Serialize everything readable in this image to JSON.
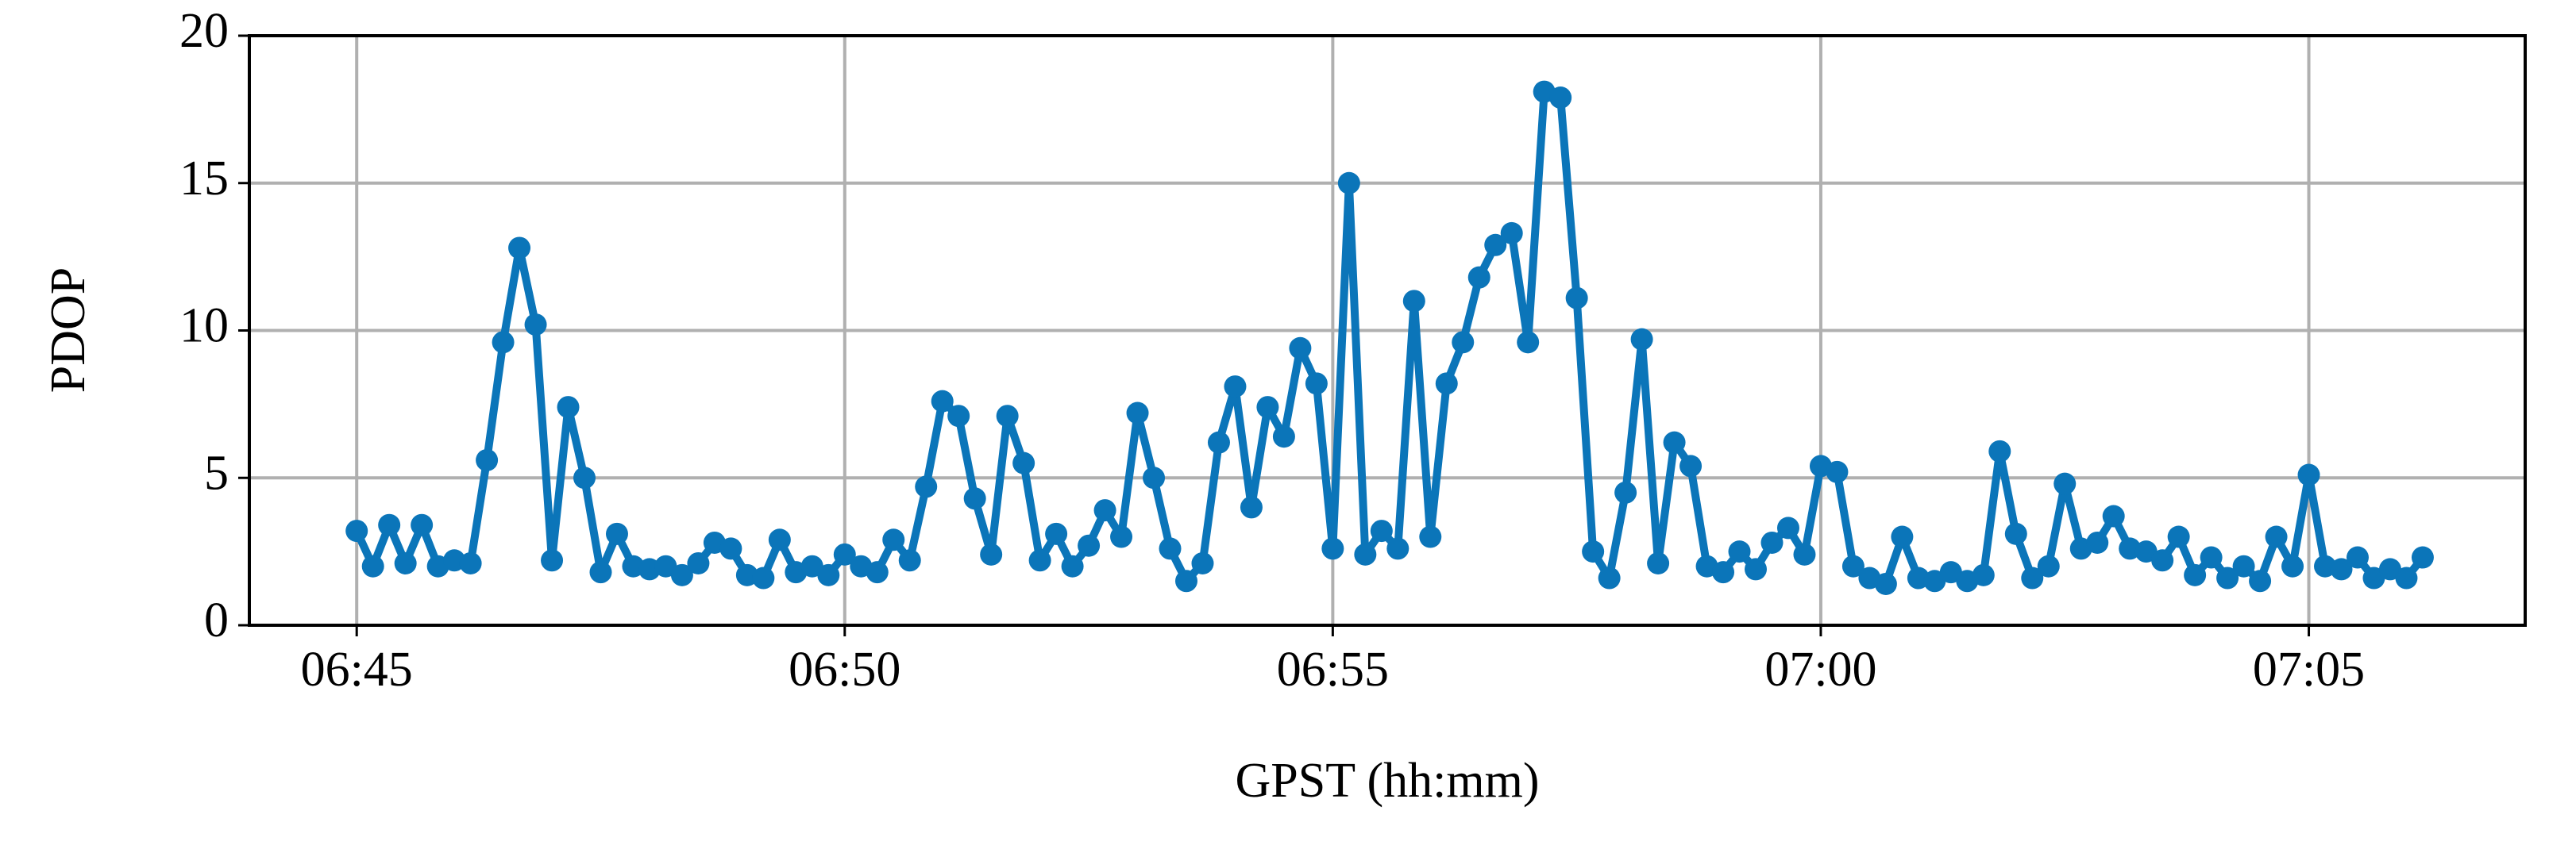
{
  "chart_data": {
    "type": "line",
    "xlabel": "GPST (hh:mm)",
    "ylabel": "PDOP",
    "grid": true,
    "x": [
      "06:45:00",
      "06:45:10",
      "06:45:20",
      "06:45:30",
      "06:45:40",
      "06:45:50",
      "06:46:00",
      "06:46:10",
      "06:46:20",
      "06:46:30",
      "06:46:40",
      "06:46:50",
      "06:47:00",
      "06:47:10",
      "06:47:20",
      "06:47:30",
      "06:47:40",
      "06:47:50",
      "06:48:00",
      "06:48:10",
      "06:48:20",
      "06:48:30",
      "06:48:40",
      "06:48:50",
      "06:49:00",
      "06:49:10",
      "06:49:20",
      "06:49:30",
      "06:49:40",
      "06:49:50",
      "06:50:00",
      "06:50:10",
      "06:50:20",
      "06:50:30",
      "06:50:40",
      "06:50:50",
      "06:51:00",
      "06:51:10",
      "06:51:20",
      "06:51:30",
      "06:51:40",
      "06:51:50",
      "06:52:00",
      "06:52:10",
      "06:52:20",
      "06:52:30",
      "06:52:40",
      "06:52:50",
      "06:53:00",
      "06:53:10",
      "06:53:20",
      "06:53:30",
      "06:53:40",
      "06:53:50",
      "06:54:00",
      "06:54:10",
      "06:54:20",
      "06:54:30",
      "06:54:40",
      "06:54:50",
      "06:55:00",
      "06:55:10",
      "06:55:20",
      "06:55:30",
      "06:55:40",
      "06:55:50",
      "06:56:00",
      "06:56:10",
      "06:56:20",
      "06:56:30",
      "06:56:40",
      "06:56:50",
      "06:57:00",
      "06:57:10",
      "06:57:20",
      "06:57:30",
      "06:57:40",
      "06:57:50",
      "06:58:00",
      "06:58:10",
      "06:58:20",
      "06:58:30",
      "06:58:40",
      "06:58:50",
      "06:59:00",
      "06:59:10",
      "06:59:20",
      "06:59:30",
      "06:59:40",
      "06:59:50",
      "07:00:00",
      "07:00:10",
      "07:00:20",
      "07:00:30",
      "07:00:40",
      "07:00:50",
      "07:01:00",
      "07:01:10",
      "07:01:20",
      "07:01:30",
      "07:01:40",
      "07:01:50",
      "07:02:00",
      "07:02:10",
      "07:02:20",
      "07:02:30",
      "07:02:40",
      "07:02:50",
      "07:03:00",
      "07:03:10",
      "07:03:20",
      "07:03:30",
      "07:03:40",
      "07:03:50",
      "07:04:00",
      "07:04:10",
      "07:04:20",
      "07:04:30",
      "07:04:40",
      "07:04:50",
      "07:05:00",
      "07:05:10",
      "07:05:20",
      "07:05:30",
      "07:05:40",
      "07:05:50",
      "07:06:00",
      "07:06:10"
    ],
    "series": [
      {
        "color": "#0b75b9",
        "values": [
          3.2,
          2.0,
          3.4,
          2.1,
          3.4,
          2.0,
          2.2,
          2.1,
          5.6,
          9.6,
          12.8,
          10.2,
          2.2,
          7.4,
          5.0,
          1.8,
          3.1,
          2.0,
          1.9,
          2.0,
          1.7,
          2.1,
          2.8,
          2.6,
          1.7,
          1.6,
          2.9,
          1.8,
          2.0,
          1.7,
          2.4,
          2.0,
          1.8,
          2.9,
          2.2,
          4.7,
          7.6,
          7.1,
          4.3,
          2.4,
          7.1,
          5.5,
          2.2,
          3.1,
          2.0,
          2.7,
          3.9,
          3.0,
          7.2,
          5.0,
          2.6,
          1.5,
          2.1,
          6.2,
          8.1,
          4.0,
          7.4,
          6.4,
          9.4,
          8.2,
          2.6,
          15.0,
          2.4,
          3.2,
          2.6,
          11.0,
          3.0,
          8.2,
          9.6,
          11.8,
          12.9,
          13.3,
          9.6,
          18.1,
          17.9,
          11.1,
          2.5,
          1.6,
          4.5,
          9.7,
          2.1,
          6.2,
          5.4,
          2.0,
          1.8,
          2.5,
          1.9,
          2.8,
          3.3,
          2.4,
          5.4,
          5.2,
          2.0,
          1.6,
          1.4,
          3.0,
          1.6,
          1.5,
          1.8,
          1.5,
          1.7,
          5.9,
          3.1,
          1.6,
          2.0,
          4.8,
          2.6,
          2.8,
          3.7,
          2.6,
          2.5,
          2.2,
          3.0,
          1.7,
          2.3,
          1.6,
          2.0,
          1.5,
          3.0,
          2.0,
          5.1,
          2.0,
          1.9,
          2.3,
          1.6,
          1.9,
          1.6,
          2.3
        ]
      }
    ],
    "xlim": [
      "06:43:54",
      "07:07:13"
    ],
    "xticks": [
      {
        "value": "06:45:00",
        "label": "06:45"
      },
      {
        "value": "06:50:00",
        "label": "06:50"
      },
      {
        "value": "06:55:00",
        "label": "06:55"
      },
      {
        "value": "07:00:00",
        "label": "07:00"
      },
      {
        "value": "07:05:00",
        "label": "07:05"
      }
    ],
    "ylim": [
      0,
      20
    ],
    "yticks": [
      0,
      5,
      10,
      15,
      20
    ]
  }
}
